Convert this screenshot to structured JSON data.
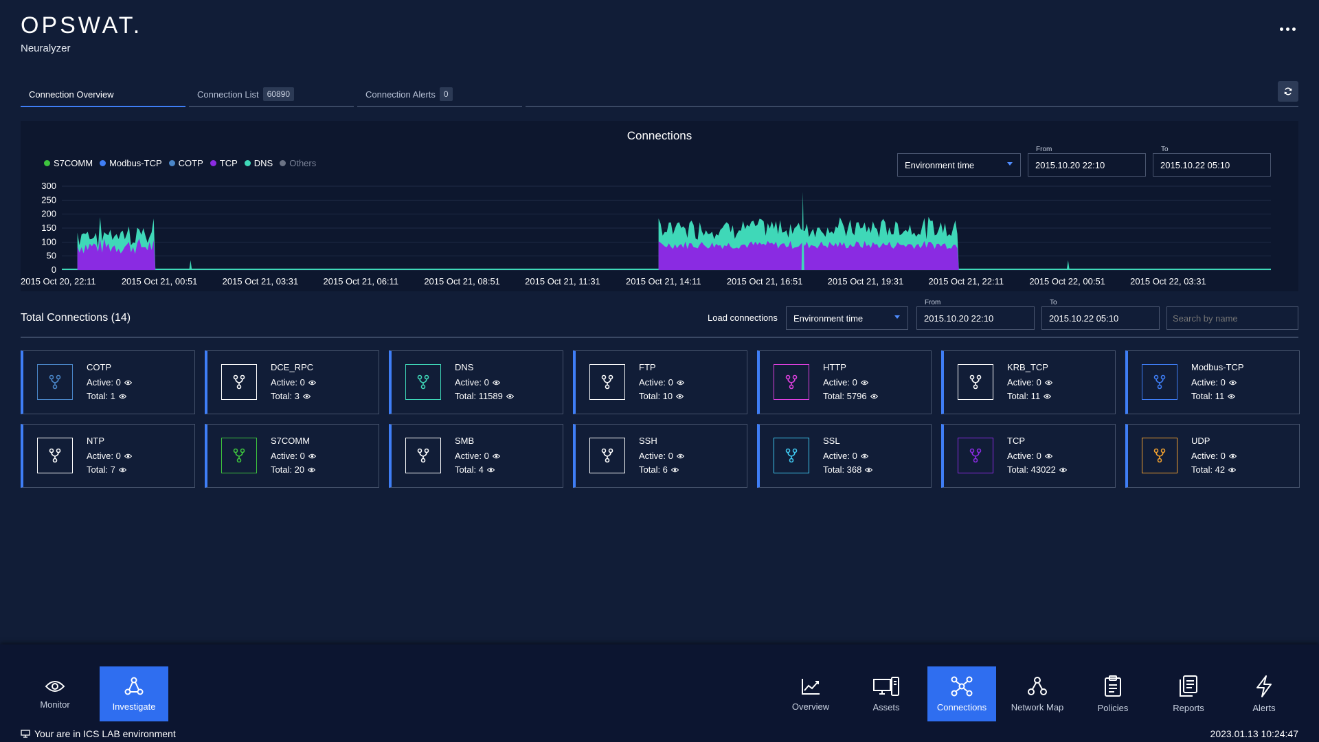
{
  "header": {
    "logo": "OPSWAT.",
    "subtitle": "Neuralyzer"
  },
  "tabs": [
    {
      "label": "Connection Overview",
      "badge": ""
    },
    {
      "label": "Connection List",
      "badge": "60890"
    },
    {
      "label": "Connection Alerts",
      "badge": "0"
    }
  ],
  "chart_panel": {
    "title": "Connections",
    "time_select": "Environment time",
    "from_label": "From",
    "from_value": "2015.10.20 22:10",
    "to_label": "To",
    "to_value": "2015.10.22 05:10"
  },
  "legend": [
    {
      "name": "S7COMM",
      "color": "#3ec43e",
      "enabled": true
    },
    {
      "name": "Modbus-TCP",
      "color": "#3f7ef6",
      "enabled": true
    },
    {
      "name": "COTP",
      "color": "#4a86c8",
      "enabled": true
    },
    {
      "name": "TCP",
      "color": "#8a2be2",
      "enabled": true
    },
    {
      "name": "DNS",
      "color": "#3fd8b8",
      "enabled": true
    },
    {
      "name": "Others",
      "color": "#6b7385",
      "enabled": false
    }
  ],
  "chart_data": {
    "type": "area",
    "title": "Connections",
    "ylim": [
      0,
      300
    ],
    "yticks": [
      0,
      50,
      100,
      150,
      200,
      250,
      300
    ],
    "x_ticks": [
      "2015 Oct 20, 22:11",
      "2015 Oct 21, 00:51",
      "2015 Oct 21, 03:31",
      "2015 Oct 21, 06:11",
      "2015 Oct 21, 08:51",
      "2015 Oct 21, 11:31",
      "2015 Oct 21, 14:11",
      "2015 Oct 21, 16:51",
      "2015 Oct 21, 19:31",
      "2015 Oct 21, 22:11",
      "2015 Oct 22, 00:51",
      "2015 Oct 22, 03:31"
    ],
    "x_range_hours": [
      0,
      31
    ],
    "segments": [
      {
        "series": "TCP",
        "start_h": 0.4,
        "end_h": 2.4,
        "mean": 85,
        "amp": 30
      },
      {
        "series": "DNS",
        "start_h": 0.4,
        "end_h": 2.4,
        "mean": 45,
        "amp": 35
      },
      {
        "series": "TCP",
        "start_h": 15.3,
        "end_h": 23.0,
        "mean": 90,
        "amp": 15
      },
      {
        "series": "DNS",
        "start_h": 15.3,
        "end_h": 23.0,
        "mean": 60,
        "amp": 30
      }
    ],
    "spikes": [
      {
        "x_h": 3.3,
        "value": 35
      },
      {
        "x_h": 19.0,
        "value": 280
      },
      {
        "x_h": 25.8,
        "value": 35
      }
    ],
    "grid": true
  },
  "total": {
    "title": "Total Connections (14)",
    "load_label": "Load connections",
    "time_select": "Environment time",
    "from_label": "From",
    "from_value": "2015.10.20 22:10",
    "to_label": "To",
    "to_value": "2015.10.22 05:10",
    "search_placeholder": "Search by name"
  },
  "cards": [
    {
      "name": "COTP",
      "active": "Active: 0",
      "total": "Total: 1",
      "color": "#4a86c8"
    },
    {
      "name": "DCE_RPC",
      "active": "Active: 0",
      "total": "Total: 3",
      "color": "#ffffff"
    },
    {
      "name": "DNS",
      "active": "Active: 0",
      "total": "Total: 11589",
      "color": "#3fd8b8"
    },
    {
      "name": "FTP",
      "active": "Active: 0",
      "total": "Total: 10",
      "color": "#ffffff"
    },
    {
      "name": "HTTP",
      "active": "Active: 0",
      "total": "Total: 5796",
      "color": "#e040e0"
    },
    {
      "name": "KRB_TCP",
      "active": "Active: 0",
      "total": "Total: 11",
      "color": "#ffffff"
    },
    {
      "name": "Modbus-TCP",
      "active": "Active: 0",
      "total": "Total: 11",
      "color": "#3f7ef6"
    },
    {
      "name": "NTP",
      "active": "Active: 0",
      "total": "Total: 7",
      "color": "#ffffff"
    },
    {
      "name": "S7COMM",
      "active": "Active: 0",
      "total": "Total: 20",
      "color": "#3ec43e"
    },
    {
      "name": "SMB",
      "active": "Active: 0",
      "total": "Total: 4",
      "color": "#ffffff"
    },
    {
      "name": "SSH",
      "active": "Active: 0",
      "total": "Total: 6",
      "color": "#ffffff"
    },
    {
      "name": "SSL",
      "active": "Active: 0",
      "total": "Total: 368",
      "color": "#3fc8f0"
    },
    {
      "name": "TCP",
      "active": "Active: 0",
      "total": "Total: 43022",
      "color": "#8a2be2"
    },
    {
      "name": "UDP",
      "active": "Active: 0",
      "total": "Total: 42",
      "color": "#f0a030"
    }
  ],
  "nav_left": [
    {
      "label": "Monitor",
      "icon": "eye-icon",
      "active": false
    },
    {
      "label": "Investigate",
      "icon": "investigate-icon",
      "active": true
    }
  ],
  "nav_right": [
    {
      "label": "Overview",
      "icon": "chart-icon",
      "active": false
    },
    {
      "label": "Assets",
      "icon": "devices-icon",
      "active": false
    },
    {
      "label": "Connections",
      "icon": "connections-icon",
      "active": true
    },
    {
      "label": "Network Map",
      "icon": "network-map-icon",
      "active": false
    },
    {
      "label": "Policies",
      "icon": "clipboard-icon",
      "active": false
    },
    {
      "label": "Reports",
      "icon": "reports-icon",
      "active": false
    },
    {
      "label": "Alerts",
      "icon": "bolt-icon",
      "active": false
    }
  ],
  "footer": {
    "environment": "Your are in ICS LAB environment",
    "timestamp": "2023.01.13 10:24:47"
  }
}
